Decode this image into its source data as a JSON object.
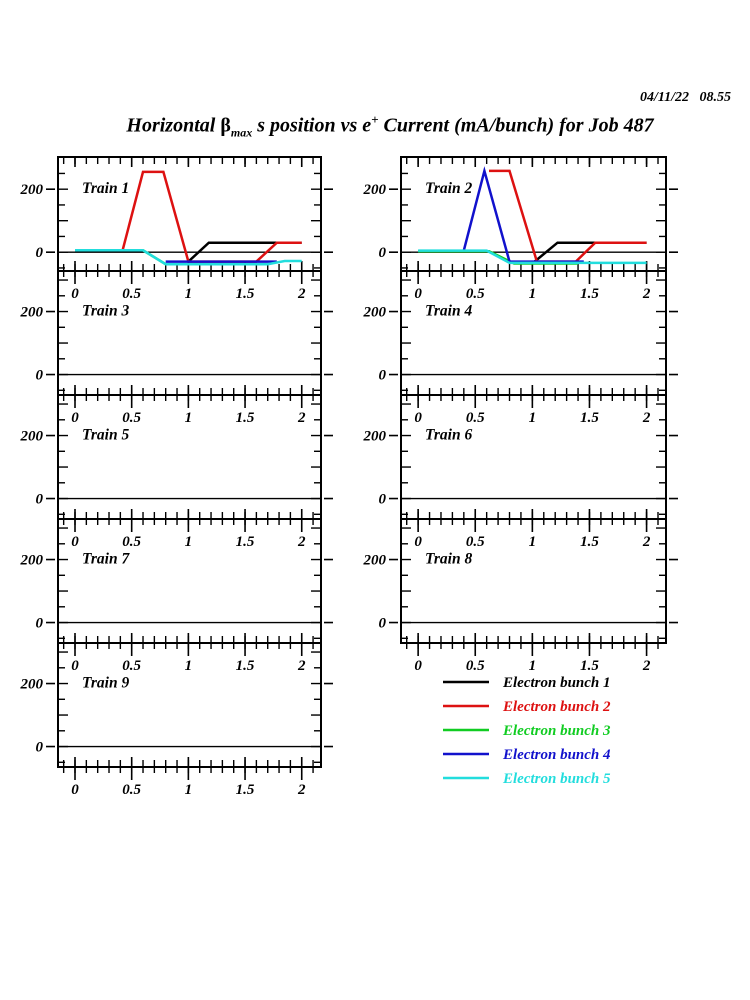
{
  "header": {
    "timestamp": "04/11/22   08.55"
  },
  "title": {
    "prefix": "Horizontal ",
    "beta": "β",
    "beta_sub": "max",
    "mid": " s position vs e",
    "sup": "+",
    "suffix": " Current (mA/bunch) for Job 487"
  },
  "colors": {
    "bunch1": "#000000",
    "bunch2": "#dd1111",
    "bunch3": "#11cc22",
    "bunch4": "#1111cc",
    "bunch5": "#22dddd"
  },
  "legend": [
    {
      "series": "bunch1",
      "label": "Electron bunch 1"
    },
    {
      "series": "bunch2",
      "label": "Electron bunch 2"
    },
    {
      "series": "bunch3",
      "label": "Electron bunch 3"
    },
    {
      "series": "bunch4",
      "label": "Electron bunch 4"
    },
    {
      "series": "bunch5",
      "label": "Electron bunch 5"
    }
  ],
  "chart_data": {
    "type": "line",
    "title": "Horizontal beta_max s position vs e+ Current (mA/bunch) for Job 487",
    "xlabel": "",
    "ylabel": "",
    "x_axis": {
      "range": [
        -0.15,
        2.17
      ],
      "tick_values": [
        0,
        0.5,
        1,
        1.5,
        2
      ],
      "tick_labels": [
        "0",
        "0.5",
        "1",
        "1.5",
        "2"
      ],
      "minor_step": 0.1
    },
    "y_axis": {
      "range": [
        -60,
        302
      ],
      "tick_values": [
        200,
        0
      ],
      "tick_labels": [
        "200",
        "0"
      ],
      "minor_step": 50,
      "major_step": 100
    },
    "panels": [
      {
        "label": "Train 1",
        "grid": [
          0,
          0
        ],
        "series": [
          {
            "id": "bunch1",
            "points": [
              [
                1.0,
                -30
              ],
              [
                1.18,
                30
              ],
              [
                2.0,
                30
              ]
            ]
          },
          {
            "id": "bunch2",
            "points": [
              [
                0.42,
                6
              ],
              [
                0.6,
                255
              ],
              [
                0.78,
                255
              ],
              [
                1.0,
                -30
              ],
              [
                1.6,
                -30
              ],
              [
                1.78,
                30
              ],
              [
                2.0,
                30
              ]
            ]
          },
          {
            "id": "bunch3",
            "points": [
              [
                0.0,
                6
              ],
              [
                0.6,
                6
              ],
              [
                0.8,
                -38
              ],
              [
                1.6,
                -38
              ]
            ]
          },
          {
            "id": "bunch4",
            "points": [
              [
                0.8,
                -30
              ],
              [
                1.78,
                -30
              ]
            ]
          },
          {
            "id": "bunch5",
            "points": [
              [
                0.0,
                6
              ],
              [
                0.6,
                6
              ],
              [
                0.8,
                -38
              ],
              [
                1.7,
                -38
              ],
              [
                1.85,
                -28
              ],
              [
                2.0,
                -28
              ]
            ]
          }
        ]
      },
      {
        "label": "Train 2",
        "grid": [
          1,
          0
        ],
        "series": [
          {
            "id": "bunch1",
            "points": [
              [
                1.02,
                -30
              ],
              [
                1.22,
                30
              ],
              [
                2.0,
                30
              ]
            ]
          },
          {
            "id": "bunch2",
            "points": [
              [
                0.62,
                258
              ],
              [
                0.8,
                258
              ],
              [
                1.04,
                -30
              ],
              [
                1.38,
                -30
              ],
              [
                1.55,
                30
              ],
              [
                2.0,
                30
              ]
            ]
          },
          {
            "id": "bunch3",
            "points": [
              [
                0.0,
                3
              ],
              [
                0.62,
                3
              ],
              [
                0.84,
                -36
              ],
              [
                1.4,
                -36
              ]
            ]
          },
          {
            "id": "bunch4",
            "points": [
              [
                0.4,
                5
              ],
              [
                0.58,
                258
              ],
              [
                0.8,
                -30
              ],
              [
                1.45,
                -30
              ]
            ]
          },
          {
            "id": "bunch5",
            "points": [
              [
                0.0,
                5
              ],
              [
                0.6,
                5
              ],
              [
                0.8,
                -34
              ],
              [
                2.0,
                -34
              ]
            ]
          }
        ]
      },
      {
        "label": "Train 3",
        "grid": [
          0,
          1
        ],
        "series": []
      },
      {
        "label": "Train 4",
        "grid": [
          1,
          1
        ],
        "series": []
      },
      {
        "label": "Train 5",
        "grid": [
          0,
          2
        ],
        "series": []
      },
      {
        "label": "Train 6",
        "grid": [
          1,
          2
        ],
        "series": []
      },
      {
        "label": "Train 7",
        "grid": [
          0,
          3
        ],
        "series": []
      },
      {
        "label": "Train 8",
        "grid": [
          1,
          3
        ],
        "series": []
      },
      {
        "label": "Train 9",
        "grid": [
          0,
          4
        ],
        "series": []
      }
    ],
    "legend_position": "bottom-right"
  }
}
